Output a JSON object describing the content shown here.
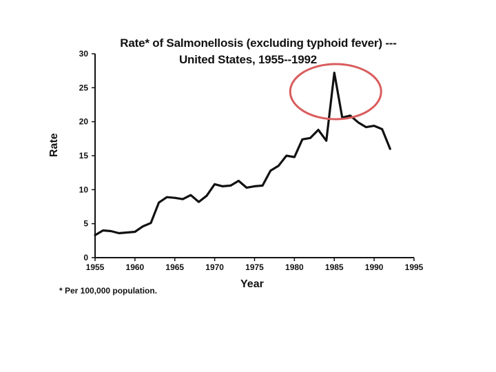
{
  "chart_data": {
    "type": "line",
    "title_line1": "Rate* of Salmonellosis (excluding typhoid fever) ---",
    "title_line2": "United States, 1955--1992",
    "xlabel": "Year",
    "ylabel": "Rate",
    "footnote": "* Per 100,000 population.",
    "xlim": [
      1955,
      1995
    ],
    "ylim": [
      0,
      30
    ],
    "xticks": [
      1955,
      1960,
      1965,
      1970,
      1975,
      1980,
      1985,
      1990,
      1995
    ],
    "yticks": [
      0,
      5,
      10,
      15,
      20,
      25,
      30
    ],
    "grid": false,
    "series": [
      {
        "x": [
          1955,
          1956,
          1957,
          1958,
          1959,
          1960,
          1961,
          1962,
          1963,
          1964,
          1965,
          1966,
          1967,
          1968,
          1969,
          1970,
          1971,
          1972,
          1973,
          1974,
          1975,
          1976,
          1977,
          1978,
          1979,
          1980,
          1981,
          1982,
          1983,
          1984,
          1985,
          1986,
          1987,
          1988,
          1989,
          1990,
          1991,
          1992
        ],
        "y": [
          3.3,
          4.0,
          3.9,
          3.6,
          3.7,
          3.8,
          4.6,
          5.1,
          8.1,
          8.9,
          8.8,
          8.6,
          9.2,
          8.2,
          9.1,
          10.8,
          10.5,
          10.6,
          11.3,
          10.3,
          10.5,
          10.6,
          12.8,
          13.5,
          15.0,
          14.8,
          17.4,
          17.6,
          18.8,
          17.2,
          27.2,
          20.6,
          20.9,
          19.9,
          19.2,
          19.4,
          18.9,
          16.0
        ],
        "color": "#111111"
      }
    ],
    "annotation": {
      "type": "circle",
      "target_year": 1985,
      "color": "#d95c5c"
    }
  }
}
